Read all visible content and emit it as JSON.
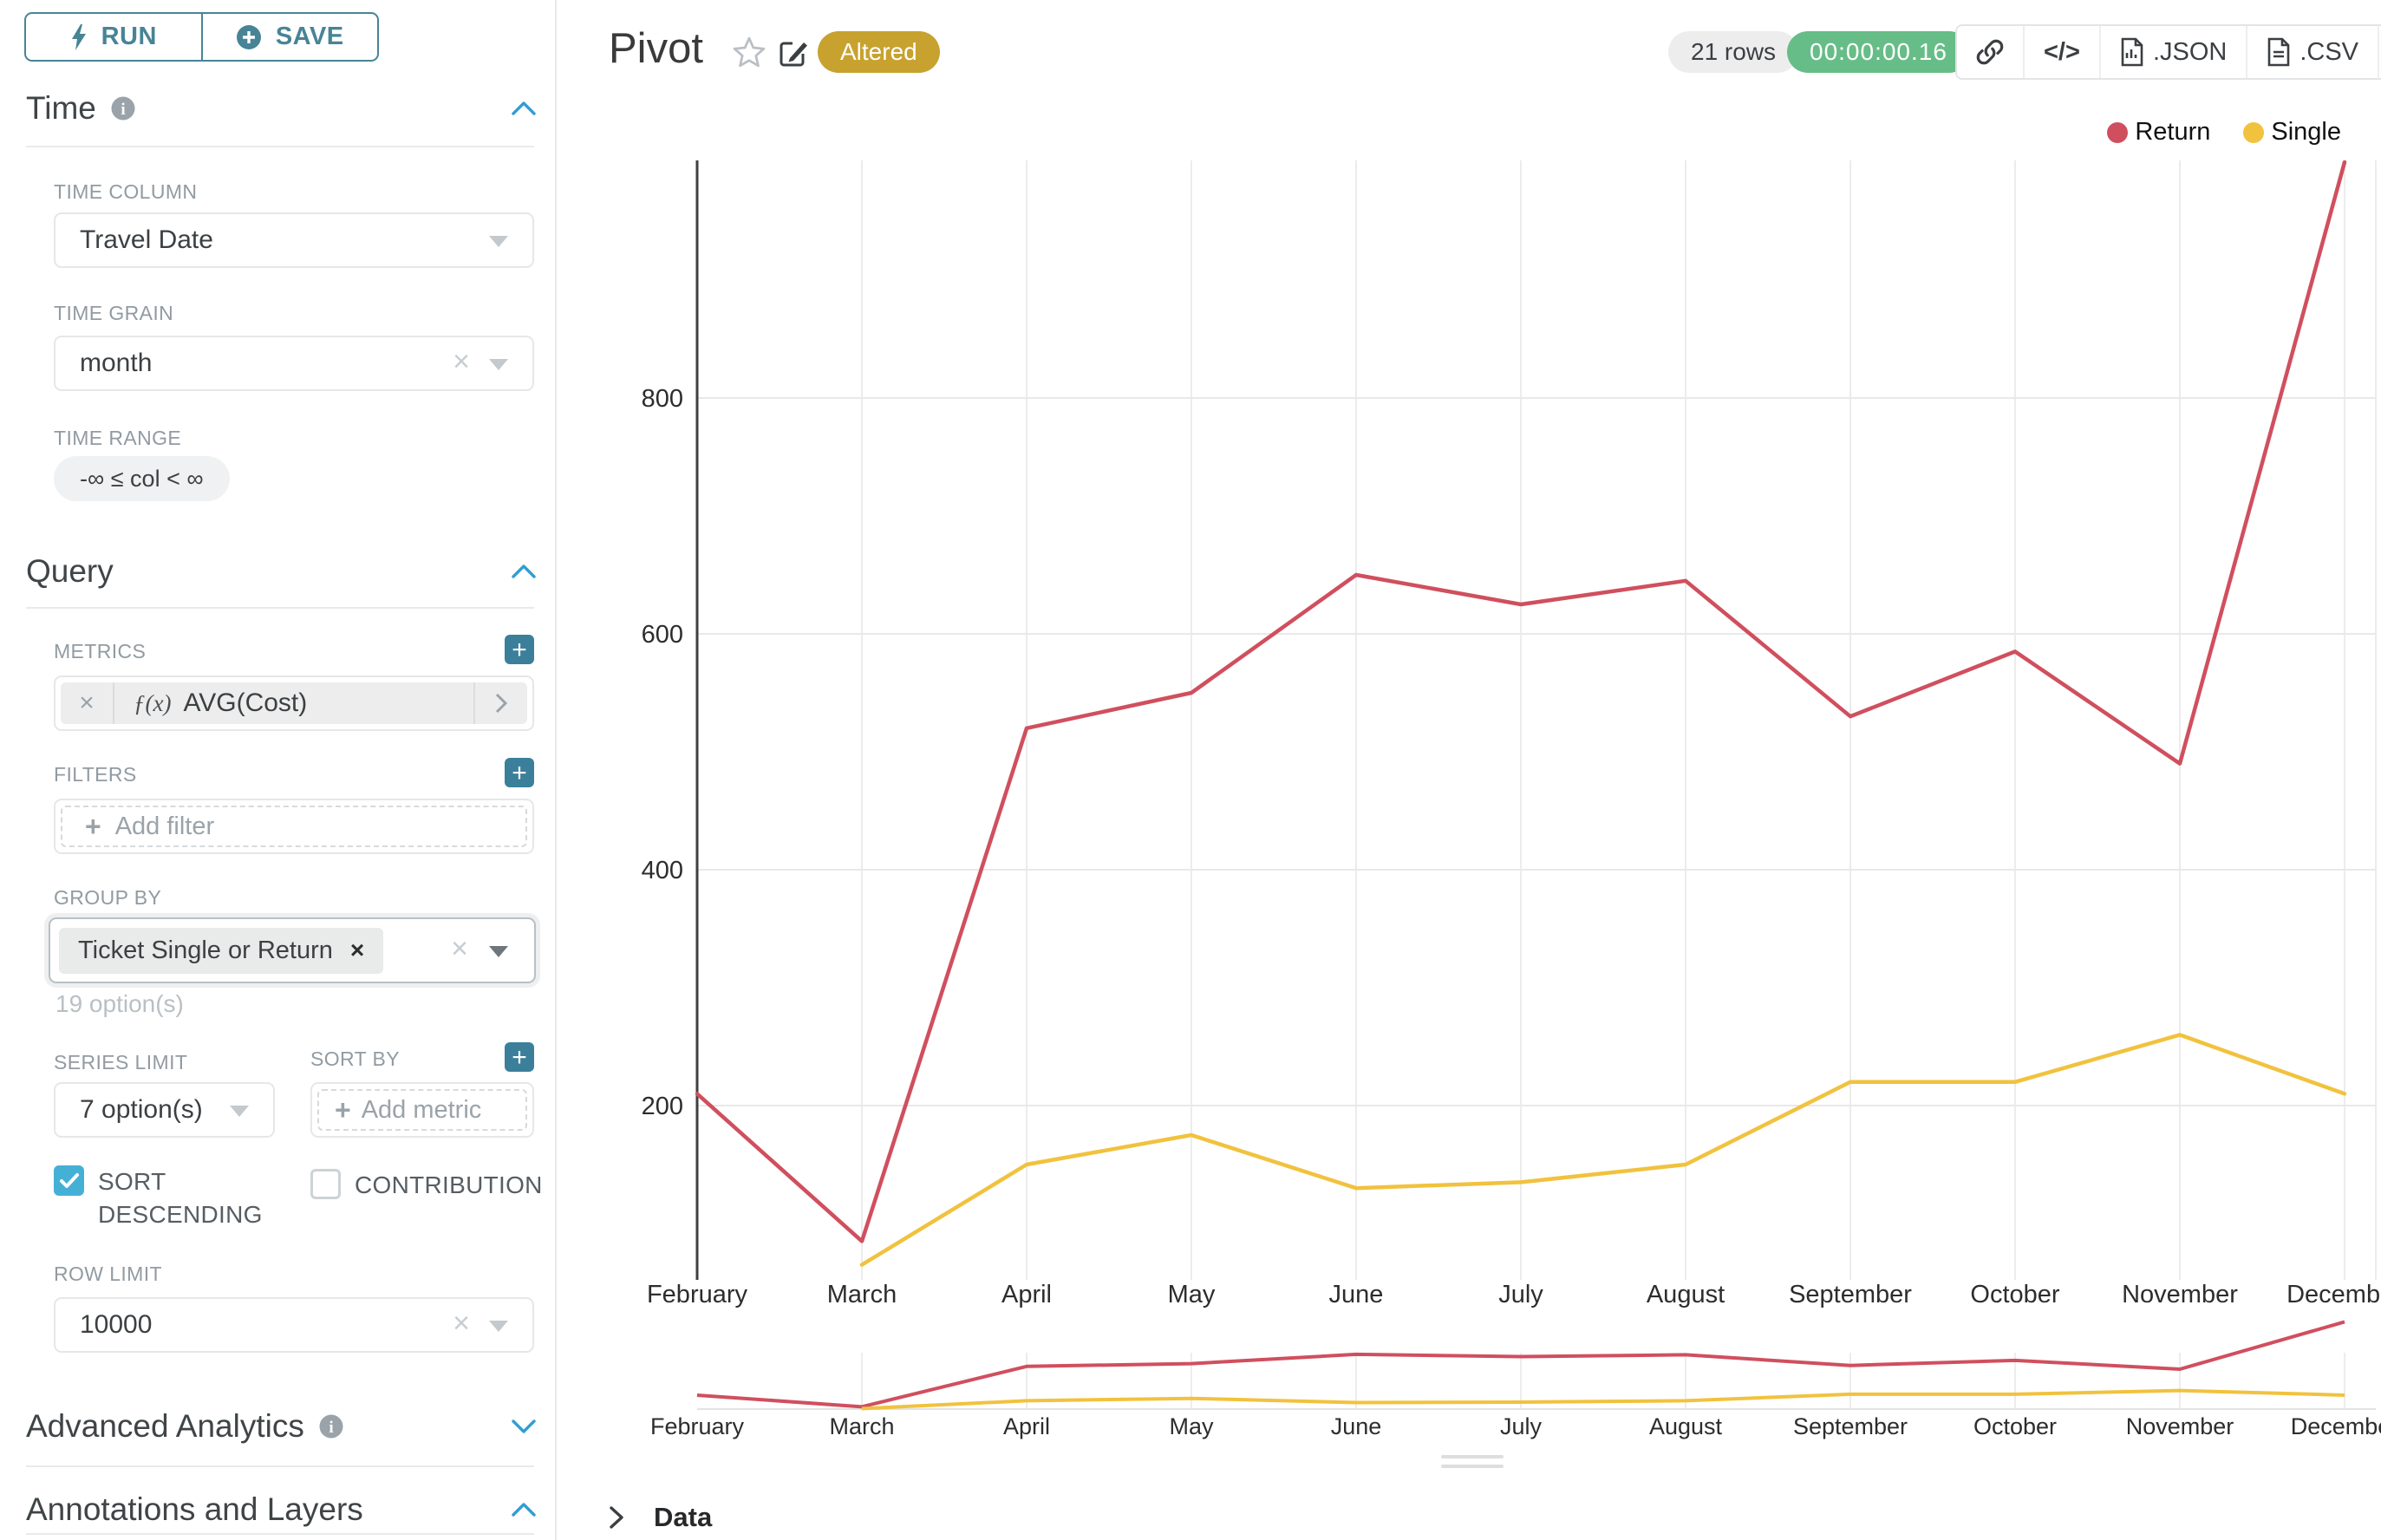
{
  "colors": {
    "accent_teal_buttons": "#3b7f9b",
    "run_save_teal": "#478495",
    "section_chevron_blue": "#2f9ed3",
    "checkbox_blue": "#45b0d6",
    "altered_gold": "#c7a22f",
    "timer_green": "#67bd87",
    "return_red": "#d04f5e",
    "single_yellow": "#f1c23e"
  },
  "sidebar": {
    "run_button": "RUN",
    "save_button": "SAVE",
    "time": {
      "title": "Time",
      "time_column_label": "TIME COLUMN",
      "time_column_value": "Travel Date",
      "time_grain_label": "TIME GRAIN",
      "time_grain_value": "month",
      "time_range_label": "TIME RANGE",
      "time_range_value": "-∞ ≤ col < ∞"
    },
    "query": {
      "title": "Query",
      "metrics_label": "METRICS",
      "metric_prefix": "ƒ(x)",
      "metric_value": "AVG(Cost)",
      "filters_label": "FILTERS",
      "add_filter_placeholder": "Add filter",
      "group_by_label": "GROUP BY",
      "group_by_tag": "Ticket Single or Return",
      "group_by_hint": "19 option(s)",
      "series_limit_label": "SERIES LIMIT",
      "series_limit_value": "7 option(s)",
      "sort_by_label": "SORT BY",
      "add_metric_placeholder": "Add metric",
      "sort_descending_label": "SORT DESCENDING",
      "sort_descending_checked": true,
      "contribution_label": "CONTRIBUTION",
      "contribution_checked": false,
      "row_limit_label": "ROW LIMIT",
      "row_limit_value": "10000"
    },
    "advanced_analytics": {
      "title": "Advanced Analytics"
    },
    "annotations": {
      "title": "Annotations and Layers"
    }
  },
  "header": {
    "title": "Pivot",
    "altered_badge": "Altered",
    "rows_badge": "21 rows",
    "duration_badge": "00:00:00.16",
    "code_button_label": "</>",
    "json_button_label": ".JSON",
    "csv_button_label": ".CSV"
  },
  "footer": {
    "data_panel_label": "Data"
  },
  "chart_data": {
    "type": "line",
    "title": "",
    "categories": [
      "February",
      "March",
      "April",
      "May",
      "June",
      "July",
      "August",
      "September",
      "October",
      "November",
      "December"
    ],
    "series": [
      {
        "name": "Return",
        "color": "#d04f5e",
        "values": [
          210,
          85,
          520,
          550,
          650,
          625,
          645,
          530,
          585,
          490,
          1000
        ]
      },
      {
        "name": "Single",
        "color": "#f1c23e",
        "values": [
          null,
          65,
          150,
          175,
          130,
          135,
          150,
          220,
          220,
          260,
          210
        ]
      }
    ],
    "xlabel": "",
    "ylabel": "",
    "y_ticks": [
      200,
      400,
      600,
      800
    ],
    "ylim": [
      60,
      1060
    ],
    "grid": true,
    "legend_position": "top-right",
    "has_range_brush": true
  }
}
